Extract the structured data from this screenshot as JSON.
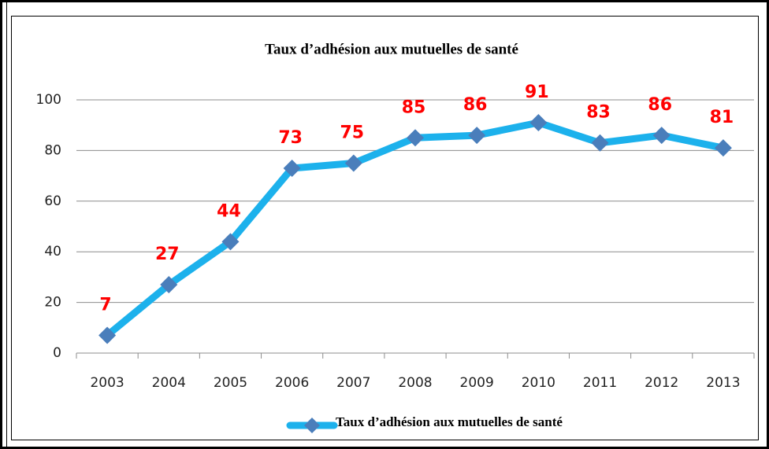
{
  "chart_data": {
    "type": "line",
    "title": "Taux d’adhésion aux mutuelles de santé",
    "categories": [
      "2003",
      "2004",
      "2005",
      "2006",
      "2007",
      "2008",
      "2009",
      "2010",
      "2011",
      "2012",
      "2013"
    ],
    "series": [
      {
        "name": "Taux d’adhésion aux mutuelles de santé",
        "color": "#1cb1ec",
        "marker_color": "#4a7ebb",
        "values": [
          7,
          27,
          44,
          73,
          75,
          85,
          86,
          91,
          83,
          86,
          81
        ]
      }
    ],
    "ylim": [
      0,
      100
    ],
    "yticks": [
      0,
      20,
      40,
      60,
      80,
      100
    ],
    "grid": true,
    "data_label_color": "#ff0000",
    "legend": "bottom"
  }
}
